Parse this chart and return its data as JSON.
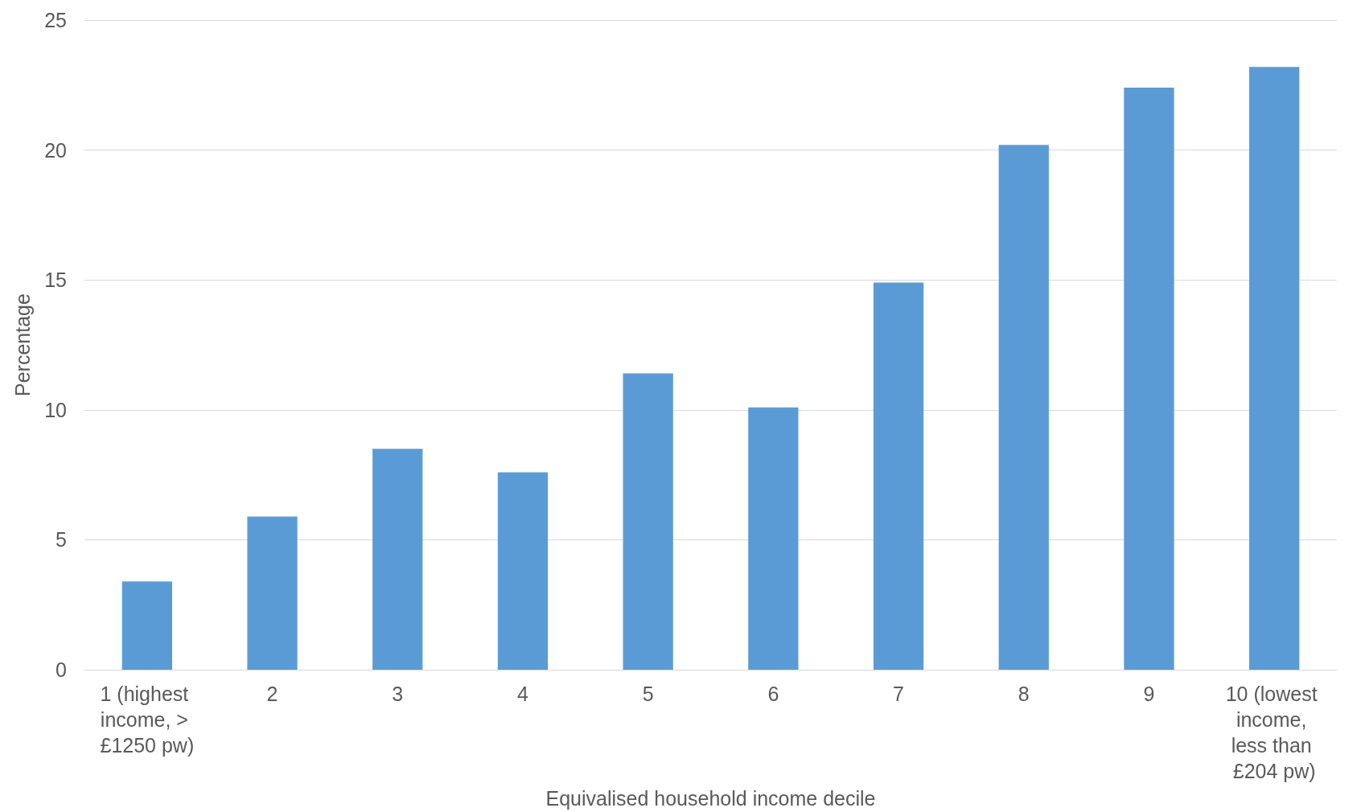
{
  "chart_data": {
    "type": "bar",
    "xlabel": "Equivalised household income decile",
    "ylabel": "Percentage",
    "categories": [
      "1 (highest income, > £1250 pw)",
      "2",
      "3",
      "4",
      "5",
      "6",
      "7",
      "8",
      "9",
      "10 (lowest income, less than £204 pw)"
    ],
    "values": [
      3.4,
      5.9,
      8.5,
      7.6,
      11.4,
      10.1,
      14.9,
      20.2,
      22.4,
      23.2
    ],
    "color": "#5b9bd5",
    "ylim": [
      0,
      25
    ],
    "yticks": [
      0,
      5,
      10,
      15,
      20,
      25
    ],
    "grid": "y"
  }
}
